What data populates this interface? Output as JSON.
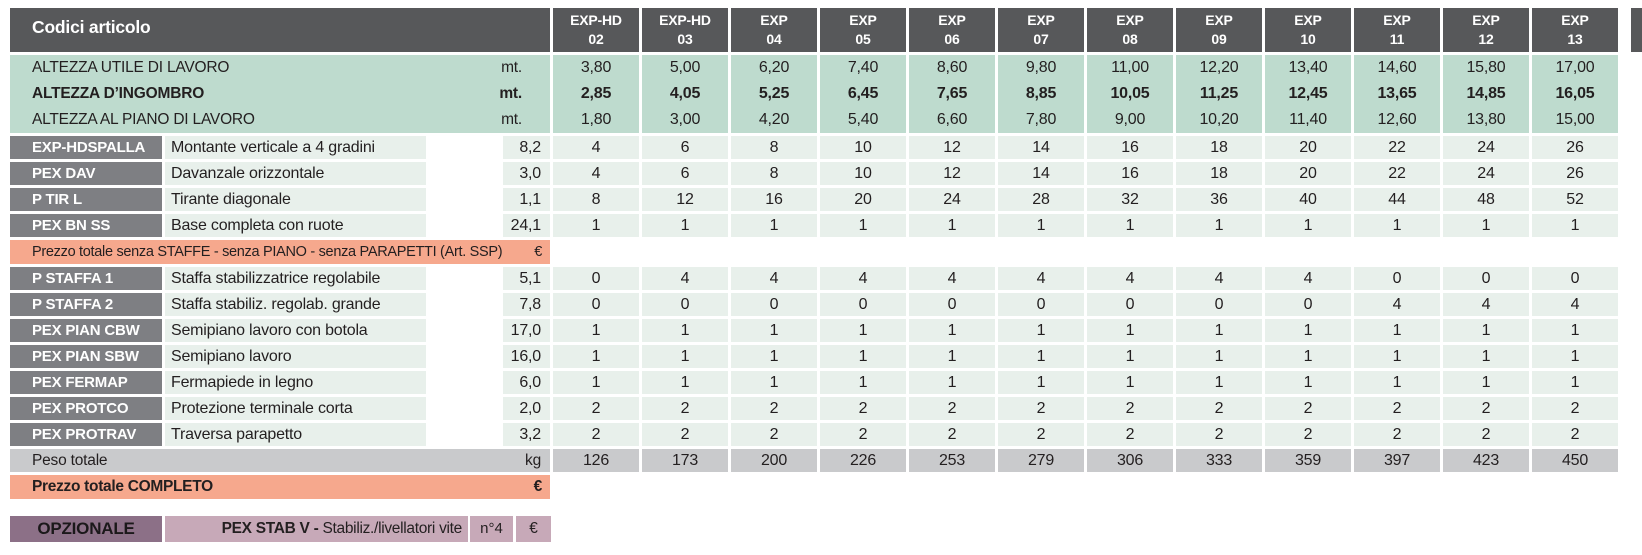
{
  "title": "Codici articolo",
  "columns": [
    {
      "line1": "EXP-HD",
      "line2": "02"
    },
    {
      "line1": "EXP-HD",
      "line2": "03"
    },
    {
      "line1": "EXP",
      "line2": "04"
    },
    {
      "line1": "EXP",
      "line2": "05"
    },
    {
      "line1": "EXP",
      "line2": "06"
    },
    {
      "line1": "EXP",
      "line2": "07"
    },
    {
      "line1": "EXP",
      "line2": "08"
    },
    {
      "line1": "EXP",
      "line2": "09"
    },
    {
      "line1": "EXP",
      "line2": "10"
    },
    {
      "line1": "EXP",
      "line2": "11"
    },
    {
      "line1": "EXP",
      "line2": "12"
    },
    {
      "line1": "EXP",
      "line2": "13"
    }
  ],
  "height_rows": [
    {
      "label": "ALTEZZA UTILE DI LAVORO",
      "unit": "mt.",
      "bold": false,
      "values": [
        "3,80",
        "5,00",
        "6,20",
        "7,40",
        "8,60",
        "9,80",
        "11,00",
        "12,20",
        "13,40",
        "14,60",
        "15,80",
        "17,00"
      ]
    },
    {
      "label": "ALTEZZA D’INGOMBRO",
      "unit": "mt.",
      "bold": true,
      "values": [
        "2,85",
        "4,05",
        "5,25",
        "6,45",
        "7,65",
        "8,85",
        "10,05",
        "11,25",
        "12,45",
        "13,65",
        "14,85",
        "16,05"
      ]
    },
    {
      "label": "ALTEZZA AL PIANO DI LAVORO",
      "unit": "mt.",
      "bold": false,
      "values": [
        "1,80",
        "3,00",
        "4,20",
        "5,40",
        "6,60",
        "7,80",
        "9,00",
        "10,20",
        "11,40",
        "12,60",
        "13,80",
        "15,00"
      ]
    }
  ],
  "component_rows_top": [
    {
      "code": "EXP-HDSPALLA",
      "description": "Montante verticale a 4 gradini",
      "weight": "8,2",
      "values": [
        "4",
        "6",
        "8",
        "10",
        "12",
        "14",
        "16",
        "18",
        "20",
        "22",
        "24",
        "26"
      ]
    },
    {
      "code": "PEX DAV",
      "description": "Davanzale orizzontale",
      "weight": "3,0",
      "values": [
        "4",
        "6",
        "8",
        "10",
        "12",
        "14",
        "16",
        "18",
        "20",
        "22",
        "24",
        "26"
      ]
    },
    {
      "code": "P TIR L",
      "description": "Tirante diagonale",
      "weight": "1,1",
      "values": [
        "8",
        "12",
        "16",
        "20",
        "24",
        "28",
        "32",
        "36",
        "40",
        "44",
        "48",
        "52"
      ]
    },
    {
      "code": "PEX BN SS",
      "description": "Base completa con ruote",
      "weight": "24,1",
      "values": [
        "1",
        "1",
        "1",
        "1",
        "1",
        "1",
        "1",
        "1",
        "1",
        "1",
        "1",
        "1"
      ]
    }
  ],
  "subtotal_row": {
    "label": "Prezzo totale senza STAFFE - senza PIANO - senza PARAPETTI (Art. SSP)",
    "currency": "€"
  },
  "component_rows_bottom": [
    {
      "code": "P STAFFA 1",
      "description": "Staffa stabilizzatrice regolabile",
      "weight": "5,1",
      "values": [
        "0",
        "4",
        "4",
        "4",
        "4",
        "4",
        "4",
        "4",
        "4",
        "0",
        "0",
        "0"
      ]
    },
    {
      "code": "P STAFFA 2",
      "description": "Staffa stabiliz. regolab. grande",
      "weight": "7,8",
      "values": [
        "0",
        "0",
        "0",
        "0",
        "0",
        "0",
        "0",
        "0",
        "0",
        "4",
        "4",
        "4"
      ]
    },
    {
      "code": "PEX PIAN CBW",
      "description": "Semipiano lavoro con botola",
      "weight": "17,0",
      "values": [
        "1",
        "1",
        "1",
        "1",
        "1",
        "1",
        "1",
        "1",
        "1",
        "1",
        "1",
        "1"
      ]
    },
    {
      "code": "PEX PIAN SBW",
      "description": "Semipiano lavoro",
      "weight": "16,0",
      "values": [
        "1",
        "1",
        "1",
        "1",
        "1",
        "1",
        "1",
        "1",
        "1",
        "1",
        "1",
        "1"
      ]
    },
    {
      "code": "PEX FERMAP",
      "description": "Fermapiede in legno",
      "weight": "6,0",
      "values": [
        "1",
        "1",
        "1",
        "1",
        "1",
        "1",
        "1",
        "1",
        "1",
        "1",
        "1",
        "1"
      ]
    },
    {
      "code": "PEX PROTCO",
      "description": "Protezione terminale corta",
      "weight": "2,0",
      "values": [
        "2",
        "2",
        "2",
        "2",
        "2",
        "2",
        "2",
        "2",
        "2",
        "2",
        "2",
        "2"
      ]
    },
    {
      "code": "PEX PROTRAV",
      "description": "Traversa parapetto",
      "weight": "3,2",
      "values": [
        "2",
        "2",
        "2",
        "2",
        "2",
        "2",
        "2",
        "2",
        "2",
        "2",
        "2",
        "2"
      ]
    }
  ],
  "weight_total_row": {
    "label": "Peso totale",
    "unit": "kg",
    "values": [
      "126",
      "173",
      "200",
      "226",
      "253",
      "279",
      "306",
      "333",
      "359",
      "397",
      "423",
      "450"
    ]
  },
  "grand_total_row": {
    "label": "Prezzo totale COMPLETO",
    "currency": "€"
  },
  "optional_row": {
    "label": "OPZIONALE",
    "code": "PEX STAB V -",
    "description": "Stabiliz./livellatori vite",
    "quantity": "n°4",
    "currency": "€"
  },
  "colors": {
    "dark": "#57585a",
    "mint": "#bedbce",
    "gray-label": "#7e7f83",
    "pale": "#e8f0eb",
    "salmon": "#f6a88d",
    "gray-row": "#c9cacc",
    "purple": "#8c7087",
    "mauve": "#c7a9b8",
    "ink": "#231f20"
  }
}
